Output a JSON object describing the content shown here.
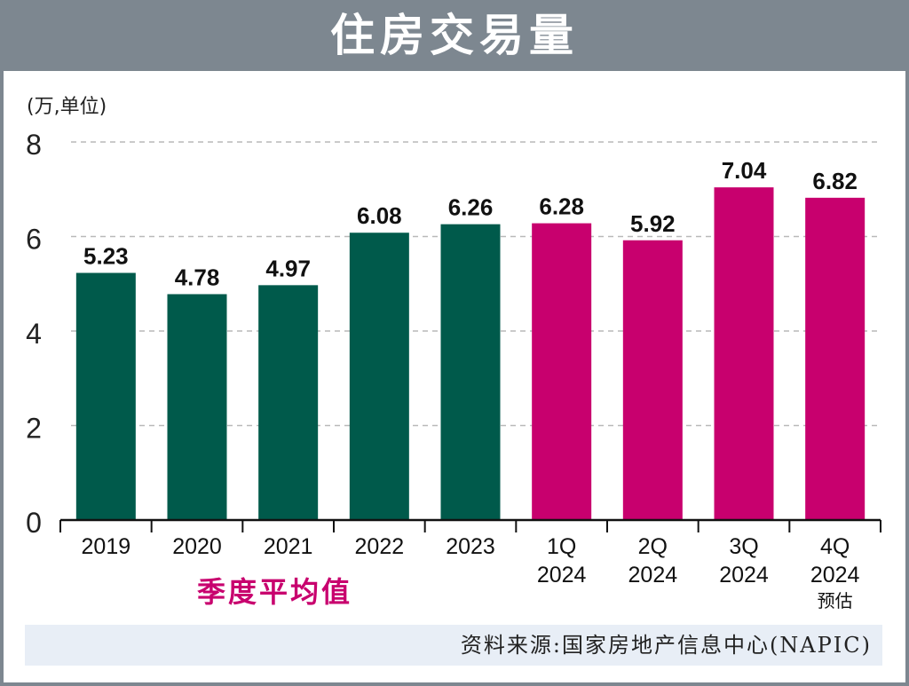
{
  "title": "住房交易量",
  "unit_label": "(万,单位)",
  "avg_note": "季度平均值",
  "source": "资料来源:国家房地产信息中心(NAPIC)",
  "colors": {
    "title_bar": "#7d8790",
    "annual_bar": "#005a4b",
    "quarter_bar": "#c8006e",
    "avg_note": "#c8006e",
    "source_band": "#e8eef6"
  },
  "chart_data": {
    "type": "bar",
    "title": "住房交易量",
    "ylabel": "(万,单位)",
    "ylim": [
      0,
      8
    ],
    "yticks": [
      0,
      2,
      4,
      6,
      8
    ],
    "grid": true,
    "categories": [
      {
        "line1": "2019",
        "line2": "",
        "line3": ""
      },
      {
        "line1": "2020",
        "line2": "",
        "line3": ""
      },
      {
        "line1": "2021",
        "line2": "",
        "line3": ""
      },
      {
        "line1": "2022",
        "line2": "",
        "line3": ""
      },
      {
        "line1": "2023",
        "line2": "",
        "line3": ""
      },
      {
        "line1": "1Q",
        "line2": "2024",
        "line3": ""
      },
      {
        "line1": "2Q",
        "line2": "2024",
        "line3": ""
      },
      {
        "line1": "3Q",
        "line2": "2024",
        "line3": ""
      },
      {
        "line1": "4Q",
        "line2": "2024",
        "line3": "预估"
      }
    ],
    "values": [
      5.23,
      4.78,
      4.97,
      6.08,
      6.26,
      6.28,
      5.92,
      7.04,
      6.82
    ],
    "value_labels": [
      "5.23",
      "4.78",
      "4.97",
      "6.08",
      "6.26",
      "6.28",
      "5.92",
      "7.04",
      "6.82"
    ],
    "bar_groups": [
      "annual",
      "annual",
      "annual",
      "annual",
      "annual",
      "quarter",
      "quarter",
      "quarter",
      "quarter"
    ]
  }
}
